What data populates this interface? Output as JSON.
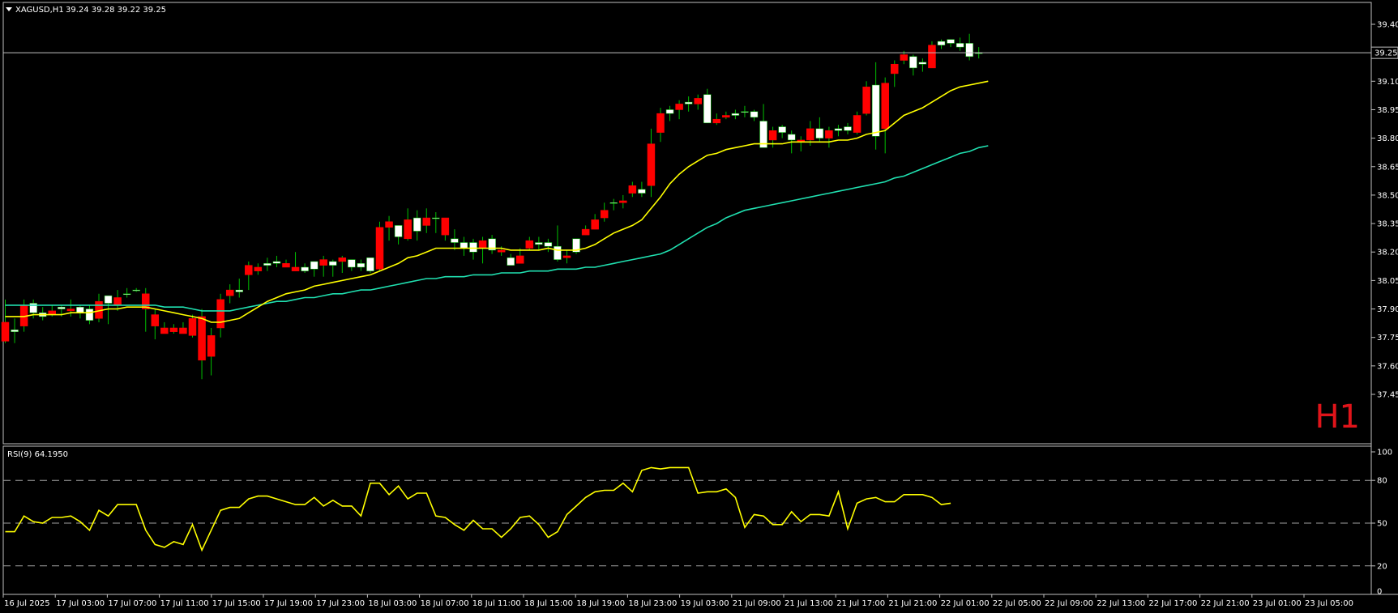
{
  "header": {
    "symbol": "XAGUSD,H1",
    "quote": "39.24 39.28 39.22 39.25"
  },
  "timeframe_badge": "H1",
  "current_price_label": "39.25",
  "colors": {
    "background": "#000000",
    "bull_candle": "#ffffff",
    "bear_candle": "#ff0000",
    "wick": "#00c000",
    "ma_fast": "#ffff00",
    "ma_slow": "#20e0b0",
    "rsi_line": "#ffff00",
    "grid_dashed": "#a0a0a0",
    "frame": "#c0c0c0"
  },
  "chart_data": [
    {
      "type": "candlestick",
      "title": "XAGUSD,H1",
      "ylim": [
        37.38,
        39.45
      ],
      "y_ticks": [
        "39.40",
        "39.25",
        "39.10",
        "38.95",
        "38.80",
        "38.65",
        "38.50",
        "38.35",
        "38.20",
        "38.05",
        "37.90",
        "37.75",
        "37.60",
        "37.45"
      ],
      "x_labels": [
        "16 Jul 2025",
        "17 Jul 03:00",
        "17 Jul 07:00",
        "17 Jul 11:00",
        "17 Jul 15:00",
        "17 Jul 19:00",
        "17 Jul 23:00",
        "18 Jul 03:00",
        "18 Jul 07:00",
        "18 Jul 11:00",
        "18 Jul 15:00",
        "18 Jul 19:00",
        "18 Jul 23:00",
        "19 Jul 03:00",
        "21 Jul 09:00",
        "21 Jul 13:00",
        "21 Jul 17:00",
        "21 Jul 21:00",
        "22 Jul 01:00",
        "22 Jul 05:00",
        "22 Jul 09:00",
        "22 Jul 13:00",
        "22 Jul 17:00",
        "22 Jul 21:00",
        "23 Jul 01:00",
        "23 Jul 05:00"
      ],
      "candles": [
        {
          "o": 37.83,
          "h": 37.95,
          "l": 37.72,
          "c": 37.73
        },
        {
          "o": 37.78,
          "h": 37.85,
          "l": 37.72,
          "c": 37.79
        },
        {
          "o": 37.92,
          "h": 37.95,
          "l": 37.78,
          "c": 37.81
        },
        {
          "o": 37.88,
          "h": 37.95,
          "l": 37.85,
          "c": 37.93
        },
        {
          "o": 37.86,
          "h": 37.91,
          "l": 37.84,
          "c": 37.88
        },
        {
          "o": 37.89,
          "h": 37.92,
          "l": 37.86,
          "c": 37.87
        },
        {
          "o": 37.9,
          "h": 37.92,
          "l": 37.86,
          "c": 37.91
        },
        {
          "o": 37.9,
          "h": 37.95,
          "l": 37.86,
          "c": 37.89
        },
        {
          "o": 37.88,
          "h": 37.92,
          "l": 37.85,
          "c": 37.91
        },
        {
          "o": 37.84,
          "h": 37.92,
          "l": 37.82,
          "c": 37.9
        },
        {
          "o": 37.94,
          "h": 37.98,
          "l": 37.83,
          "c": 37.85
        },
        {
          "o": 37.93,
          "h": 37.97,
          "l": 37.82,
          "c": 37.97
        },
        {
          "o": 37.96,
          "h": 38.0,
          "l": 37.89,
          "c": 37.92
        },
        {
          "o": 37.98,
          "h": 38.01,
          "l": 37.96,
          "c": 37.98
        },
        {
          "o": 38.0,
          "h": 38.01,
          "l": 37.99,
          "c": 38.0
        },
        {
          "o": 37.98,
          "h": 38.01,
          "l": 37.78,
          "c": 37.9
        },
        {
          "o": 37.87,
          "h": 37.9,
          "l": 37.74,
          "c": 37.81
        },
        {
          "o": 37.8,
          "h": 37.83,
          "l": 37.77,
          "c": 37.77
        },
        {
          "o": 37.8,
          "h": 37.82,
          "l": 37.77,
          "c": 37.78
        },
        {
          "o": 37.8,
          "h": 37.83,
          "l": 37.77,
          "c": 37.77
        },
        {
          "o": 37.85,
          "h": 37.87,
          "l": 37.75,
          "c": 37.76
        },
        {
          "o": 37.86,
          "h": 37.9,
          "l": 37.53,
          "c": 37.63
        },
        {
          "o": 37.76,
          "h": 37.8,
          "l": 37.55,
          "c": 37.65
        },
        {
          "o": 37.95,
          "h": 37.98,
          "l": 37.75,
          "c": 37.8
        },
        {
          "o": 38.0,
          "h": 38.03,
          "l": 37.93,
          "c": 37.97
        },
        {
          "o": 37.99,
          "h": 38.06,
          "l": 37.96,
          "c": 38.0
        },
        {
          "o": 38.13,
          "h": 38.15,
          "l": 38.0,
          "c": 38.08
        },
        {
          "o": 38.12,
          "h": 38.14,
          "l": 38.08,
          "c": 38.1
        },
        {
          "o": 38.13,
          "h": 38.17,
          "l": 38.1,
          "c": 38.14
        },
        {
          "o": 38.14,
          "h": 38.18,
          "l": 38.12,
          "c": 38.15
        },
        {
          "o": 38.14,
          "h": 38.16,
          "l": 38.12,
          "c": 38.12
        },
        {
          "o": 38.12,
          "h": 38.2,
          "l": 38.1,
          "c": 38.1
        },
        {
          "o": 38.1,
          "h": 38.14,
          "l": 38.09,
          "c": 38.12
        },
        {
          "o": 38.11,
          "h": 38.15,
          "l": 38.07,
          "c": 38.15
        },
        {
          "o": 38.16,
          "h": 38.18,
          "l": 38.07,
          "c": 38.13
        },
        {
          "o": 38.13,
          "h": 38.16,
          "l": 38.07,
          "c": 38.15
        },
        {
          "o": 38.17,
          "h": 38.18,
          "l": 38.09,
          "c": 38.15
        },
        {
          "o": 38.12,
          "h": 38.16,
          "l": 38.1,
          "c": 38.16
        },
        {
          "o": 38.12,
          "h": 38.16,
          "l": 38.1,
          "c": 38.14
        },
        {
          "o": 38.1,
          "h": 38.16,
          "l": 38.09,
          "c": 38.17
        },
        {
          "o": 38.33,
          "h": 38.36,
          "l": 38.1,
          "c": 38.11
        },
        {
          "o": 38.36,
          "h": 38.39,
          "l": 38.26,
          "c": 38.33
        },
        {
          "o": 38.28,
          "h": 38.34,
          "l": 38.24,
          "c": 38.34
        },
        {
          "o": 38.37,
          "h": 38.43,
          "l": 38.26,
          "c": 38.27
        },
        {
          "o": 38.31,
          "h": 38.42,
          "l": 38.26,
          "c": 38.38
        },
        {
          "o": 38.38,
          "h": 38.43,
          "l": 38.3,
          "c": 38.34
        },
        {
          "o": 38.38,
          "h": 38.41,
          "l": 38.3,
          "c": 38.38
        },
        {
          "o": 38.38,
          "h": 38.38,
          "l": 38.26,
          "c": 38.29
        },
        {
          "o": 38.25,
          "h": 38.32,
          "l": 38.21,
          "c": 38.27
        },
        {
          "o": 38.22,
          "h": 38.28,
          "l": 38.18,
          "c": 38.25
        },
        {
          "o": 38.2,
          "h": 38.27,
          "l": 38.16,
          "c": 38.25
        },
        {
          "o": 38.26,
          "h": 38.28,
          "l": 38.14,
          "c": 38.22
        },
        {
          "o": 38.21,
          "h": 38.29,
          "l": 38.19,
          "c": 38.27
        },
        {
          "o": 38.21,
          "h": 38.23,
          "l": 38.18,
          "c": 38.2
        },
        {
          "o": 38.13,
          "h": 38.19,
          "l": 38.13,
          "c": 38.17
        },
        {
          "o": 38.18,
          "h": 38.22,
          "l": 38.15,
          "c": 38.14
        },
        {
          "o": 38.26,
          "h": 38.28,
          "l": 38.21,
          "c": 38.22
        },
        {
          "o": 38.24,
          "h": 38.28,
          "l": 38.21,
          "c": 38.25
        },
        {
          "o": 38.23,
          "h": 38.27,
          "l": 38.2,
          "c": 38.25
        },
        {
          "o": 38.16,
          "h": 38.34,
          "l": 38.15,
          "c": 38.23
        },
        {
          "o": 38.18,
          "h": 38.21,
          "l": 38.14,
          "c": 38.17
        },
        {
          "o": 38.2,
          "h": 38.26,
          "l": 38.19,
          "c": 38.27
        },
        {
          "o": 38.32,
          "h": 38.34,
          "l": 38.29,
          "c": 38.29
        },
        {
          "o": 38.37,
          "h": 38.4,
          "l": 38.32,
          "c": 38.32
        },
        {
          "o": 38.42,
          "h": 38.46,
          "l": 38.36,
          "c": 38.38
        },
        {
          "o": 38.46,
          "h": 38.48,
          "l": 38.42,
          "c": 38.46
        },
        {
          "o": 38.47,
          "h": 38.5,
          "l": 38.43,
          "c": 38.46
        },
        {
          "o": 38.55,
          "h": 38.57,
          "l": 38.49,
          "c": 38.51
        },
        {
          "o": 38.51,
          "h": 38.57,
          "l": 38.49,
          "c": 38.53
        },
        {
          "o": 38.77,
          "h": 38.85,
          "l": 38.49,
          "c": 38.55
        },
        {
          "o": 38.93,
          "h": 38.96,
          "l": 38.78,
          "c": 38.83
        },
        {
          "o": 38.93,
          "h": 38.97,
          "l": 38.89,
          "c": 38.95
        },
        {
          "o": 38.98,
          "h": 39.0,
          "l": 38.9,
          "c": 38.95
        },
        {
          "o": 38.98,
          "h": 39.02,
          "l": 38.94,
          "c": 38.99
        },
        {
          "o": 39.01,
          "h": 39.03,
          "l": 38.95,
          "c": 38.98
        },
        {
          "o": 38.88,
          "h": 39.06,
          "l": 38.88,
          "c": 39.03
        },
        {
          "o": 38.9,
          "h": 38.93,
          "l": 38.87,
          "c": 38.88
        },
        {
          "o": 38.92,
          "h": 38.94,
          "l": 38.9,
          "c": 38.91
        },
        {
          "o": 38.92,
          "h": 38.95,
          "l": 38.9,
          "c": 38.93
        },
        {
          "o": 38.94,
          "h": 38.97,
          "l": 38.91,
          "c": 38.94
        },
        {
          "o": 38.91,
          "h": 38.95,
          "l": 38.89,
          "c": 38.94
        },
        {
          "o": 38.75,
          "h": 38.98,
          "l": 38.75,
          "c": 38.89
        },
        {
          "o": 38.84,
          "h": 38.86,
          "l": 38.75,
          "c": 38.79
        },
        {
          "o": 38.83,
          "h": 38.87,
          "l": 38.8,
          "c": 38.86
        },
        {
          "o": 38.79,
          "h": 38.84,
          "l": 38.72,
          "c": 38.82
        },
        {
          "o": 38.79,
          "h": 38.81,
          "l": 38.73,
          "c": 38.78
        },
        {
          "o": 38.85,
          "h": 38.89,
          "l": 38.76,
          "c": 38.79
        },
        {
          "o": 38.8,
          "h": 38.91,
          "l": 38.78,
          "c": 38.85
        },
        {
          "o": 38.84,
          "h": 38.86,
          "l": 38.75,
          "c": 38.8
        },
        {
          "o": 38.84,
          "h": 38.87,
          "l": 38.81,
          "c": 38.85
        },
        {
          "o": 38.84,
          "h": 38.88,
          "l": 38.82,
          "c": 38.86
        },
        {
          "o": 38.92,
          "h": 38.94,
          "l": 38.82,
          "c": 38.83
        },
        {
          "o": 39.07,
          "h": 39.1,
          "l": 38.92,
          "c": 38.93
        },
        {
          "o": 38.81,
          "h": 39.2,
          "l": 38.74,
          "c": 39.08
        },
        {
          "o": 39.09,
          "h": 39.12,
          "l": 38.72,
          "c": 38.85
        },
        {
          "o": 39.19,
          "h": 39.21,
          "l": 39.07,
          "c": 39.14
        },
        {
          "o": 39.24,
          "h": 39.26,
          "l": 39.19,
          "c": 39.21
        },
        {
          "o": 39.17,
          "h": 39.24,
          "l": 39.13,
          "c": 39.23
        },
        {
          "o": 39.19,
          "h": 39.22,
          "l": 39.15,
          "c": 39.2
        },
        {
          "o": 39.29,
          "h": 39.31,
          "l": 39.17,
          "c": 39.17
        },
        {
          "o": 39.29,
          "h": 39.32,
          "l": 39.27,
          "c": 39.31
        },
        {
          "o": 39.3,
          "h": 39.32,
          "l": 39.28,
          "c": 39.32
        },
        {
          "o": 39.28,
          "h": 39.33,
          "l": 39.26,
          "c": 39.3
        },
        {
          "o": 39.23,
          "h": 39.35,
          "l": 39.21,
          "c": 39.3
        },
        {
          "o": 39.25,
          "h": 39.28,
          "l": 39.22,
          "c": 39.25
        }
      ],
      "ma_fast": [
        37.86,
        37.86,
        37.86,
        37.87,
        37.87,
        37.87,
        37.87,
        37.88,
        37.88,
        37.88,
        37.89,
        37.9,
        37.9,
        37.91,
        37.91,
        37.91,
        37.9,
        37.89,
        37.88,
        37.87,
        37.86,
        37.85,
        37.83,
        37.83,
        37.84,
        37.85,
        37.88,
        37.91,
        37.94,
        37.96,
        37.98,
        37.99,
        38.0,
        38.02,
        38.03,
        38.04,
        38.05,
        38.06,
        38.07,
        38.08,
        38.1,
        38.12,
        38.14,
        38.17,
        38.18,
        38.2,
        38.22,
        38.22,
        38.22,
        38.22,
        38.22,
        38.22,
        38.22,
        38.22,
        38.21,
        38.21,
        38.21,
        38.21,
        38.22,
        38.21,
        38.21,
        38.21,
        38.22,
        38.24,
        38.27,
        38.3,
        38.32,
        38.34,
        38.37,
        38.43,
        38.49,
        38.56,
        38.61,
        38.65,
        38.68,
        38.71,
        38.72,
        38.74,
        38.75,
        38.76,
        38.77,
        38.77,
        38.77,
        38.77,
        38.78,
        38.78,
        38.78,
        38.78,
        38.78,
        38.79,
        38.79,
        38.8,
        38.82,
        38.83,
        38.84,
        38.88,
        38.92,
        38.94,
        38.96,
        38.99,
        39.02,
        39.05,
        39.07,
        39.08,
        39.09,
        39.1
      ],
      "ma_slow": [
        37.92,
        37.92,
        37.92,
        37.92,
        37.92,
        37.92,
        37.92,
        37.92,
        37.92,
        37.92,
        37.92,
        37.92,
        37.92,
        37.92,
        37.92,
        37.92,
        37.92,
        37.91,
        37.91,
        37.91,
        37.9,
        37.89,
        37.89,
        37.89,
        37.89,
        37.9,
        37.91,
        37.92,
        37.93,
        37.94,
        37.94,
        37.95,
        37.96,
        37.96,
        37.97,
        37.98,
        37.98,
        37.99,
        38.0,
        38.0,
        38.01,
        38.02,
        38.03,
        38.04,
        38.05,
        38.06,
        38.06,
        38.07,
        38.07,
        38.07,
        38.08,
        38.08,
        38.08,
        38.09,
        38.09,
        38.09,
        38.1,
        38.1,
        38.1,
        38.11,
        38.11,
        38.11,
        38.12,
        38.12,
        38.13,
        38.14,
        38.15,
        38.16,
        38.17,
        38.18,
        38.19,
        38.21,
        38.24,
        38.27,
        38.3,
        38.33,
        38.35,
        38.38,
        38.4,
        38.42,
        38.43,
        38.44,
        38.45,
        38.46,
        38.47,
        38.48,
        38.49,
        38.5,
        38.51,
        38.52,
        38.53,
        38.54,
        38.55,
        38.56,
        38.57,
        38.59,
        38.6,
        38.62,
        38.64,
        38.66,
        38.68,
        38.7,
        38.72,
        38.73,
        38.75,
        38.76
      ]
    },
    {
      "type": "line",
      "title": "RSI(9) 64.1950",
      "ylim": [
        0,
        100
      ],
      "y_ticks": [
        "100",
        "80",
        "50",
        "20",
        "0"
      ],
      "levels": [
        80,
        50,
        20
      ],
      "series": [
        {
          "name": "RSI(9)",
          "values": [
            44,
            44,
            55,
            51,
            50,
            54,
            54,
            55,
            51,
            45,
            59,
            55,
            63,
            63,
            63,
            45,
            35,
            33,
            37,
            35,
            49,
            31,
            45,
            59,
            61,
            61,
            67,
            69,
            69,
            67,
            65,
            63,
            63,
            68,
            62,
            66,
            62,
            62,
            55,
            78,
            78,
            70,
            76,
            67,
            71,
            71,
            55,
            54,
            49,
            45,
            52,
            46,
            46,
            40,
            46,
            54,
            55,
            49,
            40,
            44,
            56,
            62,
            68,
            72,
            73,
            73,
            78,
            72,
            87,
            89,
            88,
            89,
            89,
            89,
            71,
            72,
            72,
            74,
            68,
            47,
            56,
            55,
            49,
            49,
            58,
            51,
            56,
            56,
            55,
            72,
            46,
            64,
            67,
            68,
            65,
            65,
            70,
            70,
            70,
            68,
            63,
            64
          ]
        }
      ]
    }
  ]
}
